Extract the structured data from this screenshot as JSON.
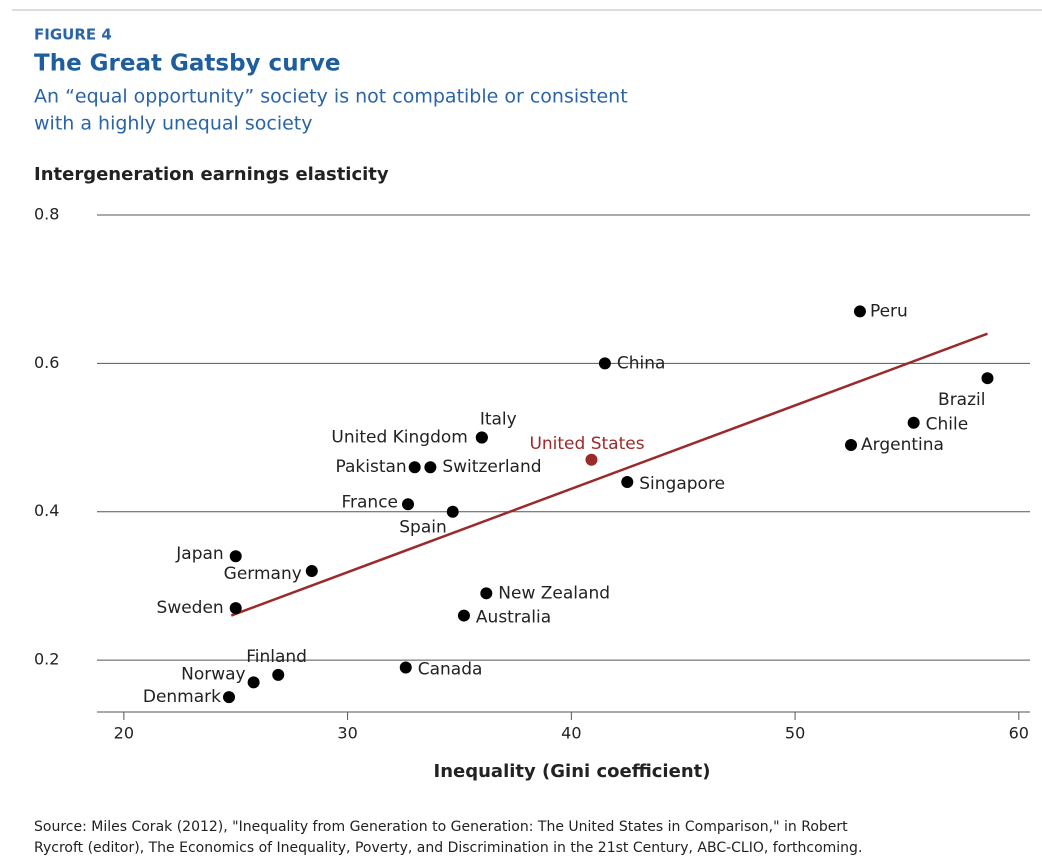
{
  "chart_data": {
    "type": "scatter",
    "figure_label": "FIGURE 4",
    "title": "The Great Gatsby curve",
    "subtitle": [
      "An “equal opportunity” society is not compatible or consistent",
      "with a highly unequal society"
    ],
    "y_label": "Intergeneration earnings elasticity",
    "x_label": "Inequality (Gini coefficient)",
    "source": [
      "Source: Miles Corak (2012), \"Inequality from Generation to Generation:  The United States in Comparison,\" in Robert",
      "Rycroft (editor), The Economics of Inequality, Poverty, and Discrimination in the 21st Century, ABC-CLIO, forthcoming."
    ],
    "labels": [
      "Peru",
      "China",
      "Brazil",
      "Chile",
      "Argentina",
      "Italy",
      "United Kingdom",
      "United States",
      "Pakistan",
      "Switzerland",
      "Singapore",
      "France",
      "Spain",
      "Japan",
      "Germany",
      "Sweden",
      "New Zealand",
      "Australia",
      "Canada",
      "Finland",
      "Norway",
      "Denmark"
    ],
    "x": [
      52.9,
      41.5,
      58.6,
      55.3,
      52.5,
      36.0,
      36.0,
      40.9,
      33.0,
      33.7,
      42.5,
      32.7,
      34.7,
      25.0,
      28.4,
      25.0,
      36.2,
      35.2,
      32.6,
      26.9,
      25.8,
      24.7
    ],
    "y": [
      0.67,
      0.6,
      0.58,
      0.52,
      0.49,
      0.5,
      0.5,
      0.47,
      0.46,
      0.46,
      0.44,
      0.41,
      0.4,
      0.34,
      0.32,
      0.27,
      0.29,
      0.26,
      0.19,
      0.18,
      0.17,
      0.15
    ],
    "point_colors": [
      "#000",
      "#000",
      "#000",
      "#000",
      "#000",
      "#000",
      "#000",
      "#9b2a2a",
      "#000",
      "#000",
      "#000",
      "#000",
      "#000",
      "#000",
      "#000",
      "#000",
      "#000",
      "#000",
      "#000",
      "#000",
      "#000",
      "#000"
    ],
    "trendline": {
      "x": [
        24.8,
        58.6
      ],
      "y": [
        0.26,
        0.64
      ],
      "color": "#9b2a2a"
    },
    "xlim": [
      18.8,
      60.5
    ],
    "ylim": [
      0.13,
      0.8
    ],
    "xticks": [
      20,
      30,
      40,
      50,
      60
    ],
    "yticks": [
      0.2,
      0.4,
      0.6,
      0.8
    ],
    "grid": true
  }
}
